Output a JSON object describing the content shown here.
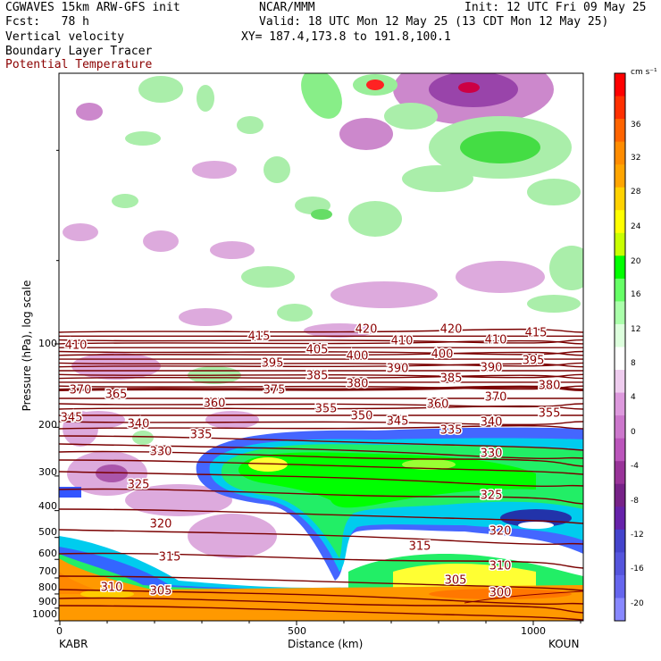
{
  "header": {
    "line1_left": "CGWAVES 15km ARW-GFS init",
    "line1_center": "NCAR/MMM",
    "line1_right": "Init: 12 UTC Fri 09 May 25",
    "line2_left": "Fcst:   78 h",
    "line2_right": "Valid: 18 UTC Mon 12 May 25 (13 CDT Mon 12 May 25)",
    "line3_left": "Vertical velocity",
    "line3_right": "XY= 187.4,173.8 to 191.8,100.1",
    "line4_left": "Boundary Layer Tracer",
    "line5_left": "Potential Temperature"
  },
  "axes": {
    "ylabel": "Pressure (hPa), log scale",
    "xlabel": "Distance (km)",
    "left_station": "KABR",
    "right_station": "KOUN",
    "yticks": [
      "100",
      "200",
      "300",
      "400",
      "500",
      "600",
      "700",
      "800",
      "900",
      "1000"
    ],
    "xticks": [
      "0",
      "500",
      "1000"
    ]
  },
  "colorbar": {
    "unit": "cm s⁻¹",
    "labels": [
      "36",
      "32",
      "28",
      "24",
      "20",
      "16",
      "12",
      "8",
      "4",
      "0",
      "-4",
      "-8",
      "-12",
      "-16",
      "-20"
    ],
    "colors": [
      "#ff0000",
      "#ff3000",
      "#ff6400",
      "#ff8c00",
      "#ffa500",
      "#ffd200",
      "#ffff00",
      "#c8ff00",
      "#00ff00",
      "#66ff66",
      "#aaffaa",
      "#ddffdd",
      "#ffffff",
      "#eeccee",
      "#dd99dd",
      "#cc77cc",
      "#bb55bb",
      "#993399",
      "#772288",
      "#6622aa",
      "#4444cc",
      "#5555dd",
      "#6666ee",
      "#8888ff"
    ]
  },
  "isentropes": [
    "420",
    "420",
    "415",
    "415",
    "410",
    "410",
    "410",
    "405",
    "400",
    "400",
    "395",
    "395",
    "390",
    "390",
    "385",
    "385",
    "380",
    "380",
    "375",
    "370",
    "370",
    "365",
    "360",
    "360",
    "355",
    "355",
    "350",
    "345",
    "345",
    "340",
    "340",
    "335",
    "335",
    "330",
    "330",
    "325",
    "325",
    "320",
    "320",
    "315",
    "315",
    "310",
    "310",
    "305",
    "305",
    "300"
  ]
}
